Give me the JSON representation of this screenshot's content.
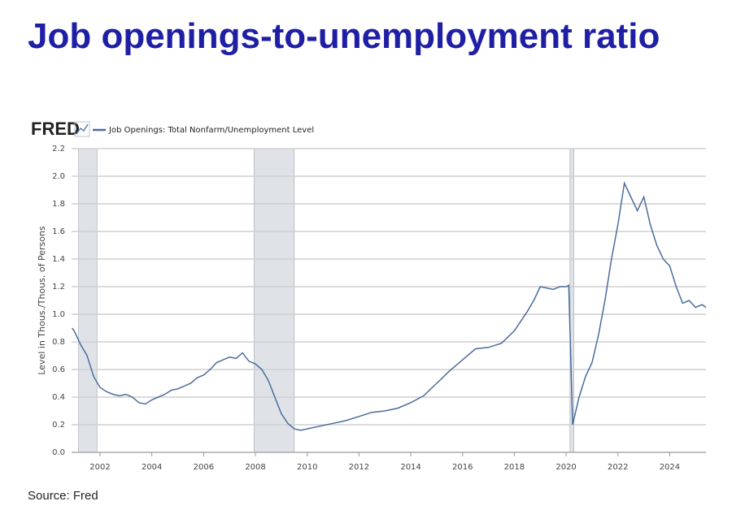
{
  "chart_data": {
    "type": "line",
    "title": "Job openings-to-unemployment ratio",
    "logo": "FRED",
    "y_label": "Level in Thous./Thous. of Persons",
    "source": "Source: Fred",
    "x": [
      2000.92,
      2001.0,
      2001.25,
      2001.5,
      2001.75,
      2002.0,
      2002.25,
      2002.5,
      2002.75,
      2003.0,
      2003.25,
      2003.5,
      2003.75,
      2004.0,
      2004.25,
      2004.5,
      2004.75,
      2005.0,
      2005.25,
      2005.5,
      2005.75,
      2006.0,
      2006.25,
      2006.5,
      2006.75,
      2007.0,
      2007.25,
      2007.5,
      2007.75,
      2008.0,
      2008.25,
      2008.5,
      2008.75,
      2009.0,
      2009.25,
      2009.5,
      2009.75,
      2010.0,
      2010.5,
      2011.0,
      2011.5,
      2012.0,
      2012.5,
      2013.0,
      2013.5,
      2014.0,
      2014.5,
      2015.0,
      2015.5,
      2016.0,
      2016.5,
      2017.0,
      2017.5,
      2018.0,
      2018.5,
      2018.75,
      2019.0,
      2019.5,
      2019.75,
      2020.0,
      2020.1,
      2020.25,
      2020.5,
      2020.75,
      2021.0,
      2021.25,
      2021.5,
      2021.75,
      2022.0,
      2022.25,
      2022.5,
      2022.75,
      2023.0,
      2023.25,
      2023.5,
      2023.75,
      2024.0,
      2024.25,
      2024.5,
      2024.75,
      2025.0,
      2025.25,
      2025.4
    ],
    "series": [
      {
        "name": "Job Openings: Total Nonfarm/Unemployment Level",
        "color": "#4a6d9c",
        "values": [
          0.9,
          0.88,
          0.78,
          0.7,
          0.55,
          0.47,
          0.44,
          0.42,
          0.41,
          0.42,
          0.4,
          0.36,
          0.35,
          0.38,
          0.4,
          0.42,
          0.45,
          0.46,
          0.48,
          0.5,
          0.54,
          0.56,
          0.6,
          0.65,
          0.67,
          0.69,
          0.68,
          0.72,
          0.66,
          0.64,
          0.6,
          0.52,
          0.4,
          0.28,
          0.21,
          0.17,
          0.16,
          0.17,
          0.19,
          0.21,
          0.23,
          0.26,
          0.29,
          0.3,
          0.32,
          0.36,
          0.41,
          0.5,
          0.59,
          0.67,
          0.75,
          0.76,
          0.79,
          0.88,
          1.02,
          1.1,
          1.2,
          1.18,
          1.2,
          1.2,
          1.21,
          0.2,
          0.4,
          0.55,
          0.65,
          0.85,
          1.1,
          1.4,
          1.65,
          1.95,
          1.85,
          1.75,
          1.85,
          1.65,
          1.5,
          1.4,
          1.35,
          1.2,
          1.08,
          1.1,
          1.05,
          1.07,
          1.05
        ]
      }
    ],
    "shaded_periods": [
      [
        2001.17,
        2001.88
      ],
      [
        2007.95,
        2009.5
      ],
      [
        2020.15,
        2020.3
      ]
    ],
    "shade_color": "#dfe3e8",
    "xlim": [
      2000.9,
      2025.4
    ],
    "xticks": [
      2002,
      2004,
      2006,
      2008,
      2010,
      2012,
      2014,
      2016,
      2018,
      2020,
      2022,
      2024
    ],
    "ylim": [
      0,
      2.2
    ],
    "yticks": [
      {
        "value": 0,
        "label": "0.0"
      },
      0.2,
      0.4,
      0.6,
      0.8,
      {
        "value": 1,
        "label": "1.0"
      },
      1.2,
      1.4,
      1.6,
      1.8,
      {
        "value": 2,
        "label": "2.0"
      },
      2.2
    ],
    "grid": true
  }
}
